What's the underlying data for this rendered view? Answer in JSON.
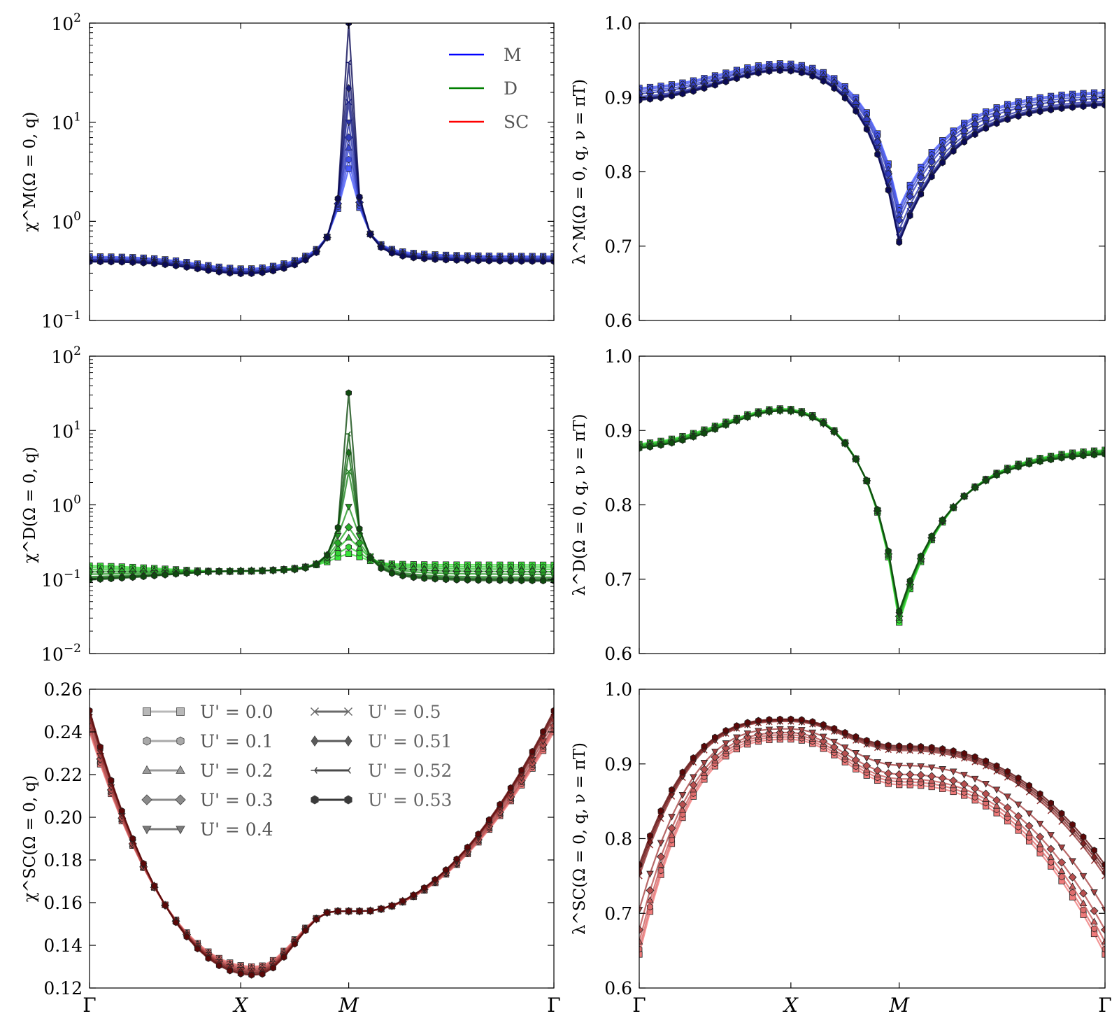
{
  "chart_data": [
    {
      "id": "chiM",
      "type": "line",
      "scale": "log",
      "ylim": [
        0.1,
        100
      ],
      "ylabel": "χ^M(Ω = 0, q)",
      "y_ticks": [
        {
          "base": "10",
          "exp": "−1"
        },
        {
          "base": "10",
          "exp": "0"
        },
        {
          "base": "10",
          "exp": "1"
        },
        {
          "base": "10",
          "exp": "2"
        }
      ],
      "x_ticks": [],
      "color": "#1a2fd6",
      "legend": {
        "placement": "top-right",
        "entries": [
          {
            "label": "M",
            "color": "#0000ff"
          },
          {
            "label": "D",
            "color": "#007f00"
          },
          {
            "label": "SC",
            "color": "#ff0000"
          }
        ]
      },
      "series": [
        {
          "name": "U' = 0.0",
          "peak": 3.4,
          "base": 0.44
        },
        {
          "name": "U' = 0.1",
          "peak": 4.2,
          "base": 0.43
        },
        {
          "name": "U' = 0.2",
          "peak": 5.5,
          "base": 0.42
        },
        {
          "name": "U' = 0.3",
          "peak": 7.0,
          "base": 0.41
        },
        {
          "name": "U' = 0.4",
          "peak": 10.0,
          "base": 0.41
        },
        {
          "name": "U' = 0.5",
          "peak": 16.0,
          "base": 0.4
        },
        {
          "name": "U' = 0.51",
          "peak": 22.0,
          "base": 0.4
        },
        {
          "name": "U' = 0.52",
          "peak": 40.0,
          "base": 0.39
        },
        {
          "name": "U' = 0.53",
          "peak": 100.0,
          "base": 0.39
        }
      ]
    },
    {
      "id": "lamM",
      "type": "line",
      "scale": "linear",
      "ylim": [
        0.6,
        1.0
      ],
      "ylabel": "λ^M(Ω = 0, q, ν = πT)",
      "y_ticks": [
        "0.6",
        "0.7",
        "0.8",
        "0.9",
        "1.0"
      ],
      "x_ticks": [],
      "color": "#1a2fd6",
      "series": [
        {
          "name": "U' = 0.0",
          "gamma": 0.91,
          "x": 0.948,
          "m": 0.752
        },
        {
          "name": "U' = 0.1",
          "gamma": 0.908,
          "x": 0.946,
          "m": 0.748
        },
        {
          "name": "U' = 0.2",
          "gamma": 0.905,
          "x": 0.944,
          "m": 0.742
        },
        {
          "name": "U' = 0.3",
          "gamma": 0.902,
          "x": 0.943,
          "m": 0.735
        },
        {
          "name": "U' = 0.4",
          "gamma": 0.898,
          "x": 0.941,
          "m": 0.722
        },
        {
          "name": "U' = 0.5",
          "gamma": 0.896,
          "x": 0.94,
          "m": 0.712
        },
        {
          "name": "U' = 0.51",
          "gamma": 0.895,
          "x": 0.94,
          "m": 0.708
        },
        {
          "name": "U' = 0.52",
          "gamma": 0.894,
          "x": 0.94,
          "m": 0.706
        },
        {
          "name": "U' = 0.53",
          "gamma": 0.893,
          "x": 0.939,
          "m": 0.705
        }
      ]
    },
    {
      "id": "chiD",
      "type": "line",
      "scale": "log",
      "ylim": [
        0.01,
        100
      ],
      "ylabel": "χ^D(Ω = 0, q)",
      "y_ticks": [
        {
          "base": "10",
          "exp": "−2"
        },
        {
          "base": "10",
          "exp": "−1"
        },
        {
          "base": "10",
          "exp": "0"
        },
        {
          "base": "10",
          "exp": "1"
        },
        {
          "base": "10",
          "exp": "2"
        }
      ],
      "x_ticks": [],
      "color": "#1f8f1f",
      "series": [
        {
          "name": "U' = 0.0",
          "peak": 0.22,
          "base": 0.155
        },
        {
          "name": "U' = 0.1",
          "peak": 0.27,
          "base": 0.145
        },
        {
          "name": "U' = 0.2",
          "peak": 0.36,
          "base": 0.135
        },
        {
          "name": "U' = 0.3",
          "peak": 0.5,
          "base": 0.125
        },
        {
          "name": "U' = 0.4",
          "peak": 0.95,
          "base": 0.115
        },
        {
          "name": "U' = 0.5",
          "peak": 2.8,
          "base": 0.105
        },
        {
          "name": "U' = 0.51",
          "peak": 5.0,
          "base": 0.1
        },
        {
          "name": "U' = 0.52",
          "peak": 9.0,
          "base": 0.097
        },
        {
          "name": "U' = 0.53",
          "peak": 32.0,
          "base": 0.094
        }
      ]
    },
    {
      "id": "lamD",
      "type": "line",
      "scale": "linear",
      "ylim": [
        0.6,
        1.0
      ],
      "ylabel": "λ^D(Ω = 0, q, ν = πT)",
      "y_ticks": [
        "0.6",
        "0.7",
        "0.8",
        "0.9",
        "1.0"
      ],
      "x_ticks": [],
      "color": "#1f8f1f",
      "series": [
        {
          "name": "U' = 0.0",
          "gamma": 0.878,
          "x": 0.933,
          "m": 0.642
        },
        {
          "name": "U' = 0.1",
          "gamma": 0.877,
          "x": 0.932,
          "m": 0.645
        },
        {
          "name": "U' = 0.2",
          "gamma": 0.876,
          "x": 0.932,
          "m": 0.648
        },
        {
          "name": "U' = 0.3",
          "gamma": 0.875,
          "x": 0.931,
          "m": 0.65
        },
        {
          "name": "U' = 0.4",
          "gamma": 0.874,
          "x": 0.931,
          "m": 0.652
        },
        {
          "name": "U' = 0.5",
          "gamma": 0.873,
          "x": 0.93,
          "m": 0.654
        },
        {
          "name": "U' = 0.51",
          "gamma": 0.873,
          "x": 0.93,
          "m": 0.655
        },
        {
          "name": "U' = 0.52",
          "gamma": 0.872,
          "x": 0.93,
          "m": 0.656
        },
        {
          "name": "U' = 0.53",
          "gamma": 0.872,
          "x": 0.93,
          "m": 0.657
        }
      ]
    },
    {
      "id": "chiSC",
      "type": "line",
      "scale": "linear",
      "ylim": [
        0.12,
        0.26
      ],
      "ylabel": "χ^SC(Ω = 0, q)",
      "y_ticks": [
        "0.12",
        "0.14",
        "0.16",
        "0.18",
        "0.20",
        "0.22",
        "0.24",
        "0.26"
      ],
      "x_ticks": [
        "Γ",
        "X",
        "M",
        "Γ"
      ],
      "color": "#b01515",
      "legend": {
        "placement": "top-left",
        "entries": [
          {
            "label": "U' = 0.0",
            "marker": "square"
          },
          {
            "label": "U' = 0.1",
            "marker": "hexagon"
          },
          {
            "label": "U' = 0.2",
            "marker": "triangle-up"
          },
          {
            "label": "U' = 0.3",
            "marker": "diamond"
          },
          {
            "label": "U' = 0.4",
            "marker": "triangle-down"
          },
          {
            "label": "U' = 0.5",
            "marker": "x"
          },
          {
            "label": "U' = 0.51",
            "marker": "thin-diamond"
          },
          {
            "label": "U' = 0.52",
            "marker": "tri-left"
          },
          {
            "label": "U' = 0.53",
            "marker": "hexagon"
          }
        ]
      },
      "series": [
        {
          "name": "U' = 0.0",
          "gamma": 0.24,
          "x": 0.13,
          "m": 0.156
        },
        {
          "name": "U' = 0.1",
          "gamma": 0.241,
          "x": 0.1295,
          "m": 0.156
        },
        {
          "name": "U' = 0.2",
          "gamma": 0.242,
          "x": 0.129,
          "m": 0.156
        },
        {
          "name": "U' = 0.3",
          "gamma": 0.243,
          "x": 0.1285,
          "m": 0.156
        },
        {
          "name": "U' = 0.4",
          "gamma": 0.245,
          "x": 0.128,
          "m": 0.156
        },
        {
          "name": "U' = 0.5",
          "gamma": 0.247,
          "x": 0.1275,
          "m": 0.156
        },
        {
          "name": "U' = 0.51",
          "gamma": 0.248,
          "x": 0.127,
          "m": 0.156
        },
        {
          "name": "U' = 0.52",
          "gamma": 0.249,
          "x": 0.1265,
          "m": 0.156
        },
        {
          "name": "U' = 0.53",
          "gamma": 0.25,
          "x": 0.126,
          "m": 0.156
        }
      ]
    },
    {
      "id": "lamSC",
      "type": "line",
      "scale": "linear",
      "ylim": [
        0.6,
        1.0
      ],
      "ylabel": "λ^SC(Ω = 0, q, ν = πT)",
      "y_ticks": [
        "0.6",
        "0.7",
        "0.8",
        "0.9",
        "1.0"
      ],
      "x_ticks": [
        "Γ",
        "X",
        "M",
        "Γ"
      ],
      "color": "#b01515",
      "series": [
        {
          "name": "U' = 0.0",
          "gamma": 0.645,
          "x": 0.933,
          "m": 0.872
        },
        {
          "name": "U' = 0.1",
          "gamma": 0.652,
          "x": 0.936,
          "m": 0.876
        },
        {
          "name": "U' = 0.2",
          "gamma": 0.662,
          "x": 0.939,
          "m": 0.88
        },
        {
          "name": "U' = 0.3",
          "gamma": 0.678,
          "x": 0.942,
          "m": 0.886
        },
        {
          "name": "U' = 0.4",
          "gamma": 0.705,
          "x": 0.947,
          "m": 0.898
        },
        {
          "name": "U' = 0.5",
          "gamma": 0.75,
          "x": 0.957,
          "m": 0.918
        },
        {
          "name": "U' = 0.51",
          "gamma": 0.755,
          "x": 0.958,
          "m": 0.92
        },
        {
          "name": "U' = 0.52",
          "gamma": 0.76,
          "x": 0.959,
          "m": 0.922
        },
        {
          "name": "U' = 0.53",
          "gamma": 0.765,
          "x": 0.96,
          "m": 0.924
        }
      ]
    }
  ]
}
